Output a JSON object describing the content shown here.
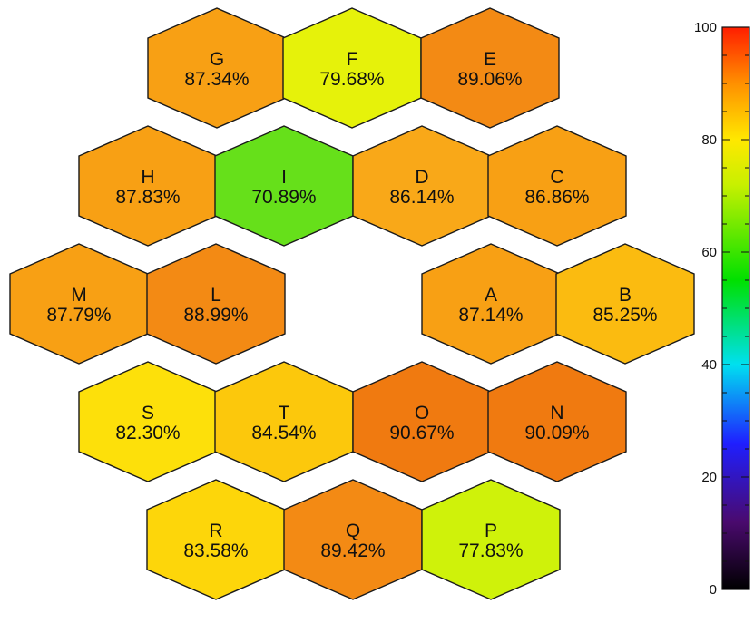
{
  "chart_data": {
    "type": "heatmap",
    "layout": "hexagonal segmented mirror map (18 segments, empty center)",
    "colorbar": {
      "min": 0,
      "max": 100,
      "ticks": [
        0,
        20,
        40,
        60,
        80,
        100
      ],
      "colormap": "black-purple-blue-cyan-green-yellow-orange-red"
    },
    "segments": [
      {
        "label": "G",
        "value": 87.34,
        "text": "87.34%"
      },
      {
        "label": "F",
        "value": 79.68,
        "text": "79.68%"
      },
      {
        "label": "E",
        "value": 89.06,
        "text": "89.06%"
      },
      {
        "label": "H",
        "value": 87.83,
        "text": "87.83%"
      },
      {
        "label": "I",
        "value": 70.89,
        "text": "70.89%"
      },
      {
        "label": "D",
        "value": 86.14,
        "text": "86.14%"
      },
      {
        "label": "C",
        "value": 86.86,
        "text": "86.86%"
      },
      {
        "label": "M",
        "value": 87.79,
        "text": "87.79%"
      },
      {
        "label": "L",
        "value": 88.99,
        "text": "88.99%"
      },
      {
        "label": "A",
        "value": 87.14,
        "text": "87.14%"
      },
      {
        "label": "B",
        "value": 85.25,
        "text": "85.25%"
      },
      {
        "label": "S",
        "value": 82.3,
        "text": "82.30%"
      },
      {
        "label": "T",
        "value": 84.54,
        "text": "84.54%"
      },
      {
        "label": "O",
        "value": 90.67,
        "text": "90.67%"
      },
      {
        "label": "N",
        "value": 90.09,
        "text": "90.09%"
      },
      {
        "label": "R",
        "value": 83.58,
        "text": "83.58%"
      },
      {
        "label": "Q",
        "value": 89.42,
        "text": "89.42%"
      },
      {
        "label": "P",
        "value": 77.83,
        "text": "77.83%"
      }
    ]
  }
}
